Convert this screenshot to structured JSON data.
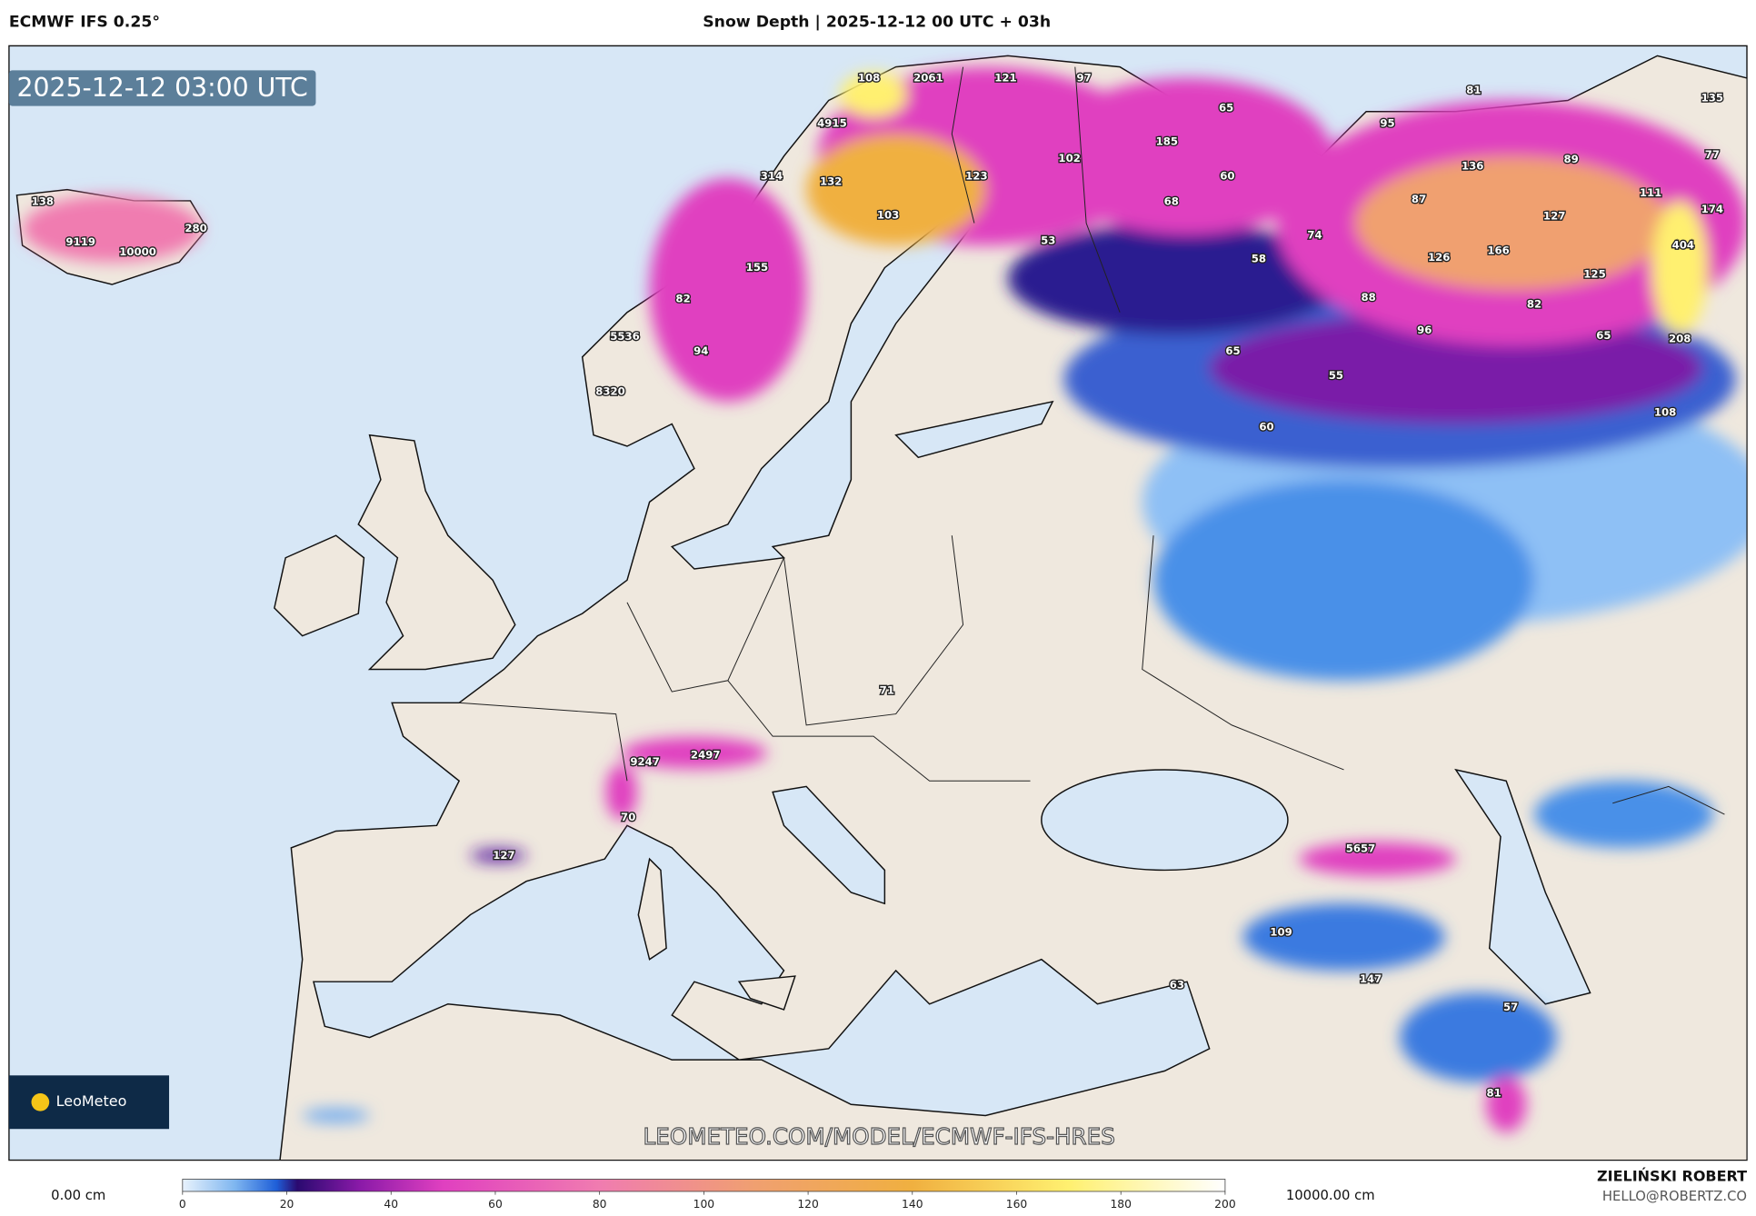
{
  "header": {
    "model": "ECMWF IFS 0.25°",
    "title": "Snow Depth | 2025-12-12 00 UTC + 03h"
  },
  "map": {
    "timestamp": "2025-12-12 03:00 UTC",
    "watermark": "LEOMETEO.COM/MODEL/ECMWF-IFS-HRES",
    "logo": "LeoMeteo",
    "point_values": [
      108,
      2061,
      121,
      97,
      81,
      135,
      65,
      4915,
      95,
      185,
      102,
      77,
      136,
      89,
      314,
      132,
      123,
      60,
      138,
      87,
      111,
      68,
      174,
      103,
      127,
      280,
      53,
      74,
      9119,
      10000,
      404,
      166,
      126,
      58,
      155,
      125,
      82,
      88,
      82,
      96,
      5536,
      208,
      65,
      94,
      65,
      55,
      8320,
      108,
      60,
      71,
      9247,
      2497,
      70,
      127,
      5657,
      109,
      147,
      63,
      57,
      81
    ]
  },
  "legend": {
    "min_label": "0.00 cm",
    "max_label": "10000.00 cm",
    "range": [
      0,
      200
    ],
    "ticks": [
      0,
      20,
      40,
      60,
      80,
      100,
      120,
      140,
      160,
      180,
      200
    ]
  },
  "footer": {
    "author": "ZIELIŃSKI ROBERT",
    "email": "HELLO@ROBERTZ.CO"
  }
}
